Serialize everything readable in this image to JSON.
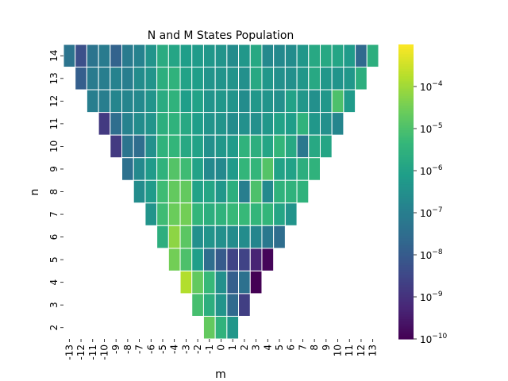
{
  "chart_data": {
    "type": "heatmap",
    "title": "N and M States Population",
    "xlabel": "m",
    "ylabel": "n",
    "x_categories": [
      -13,
      -12,
      -11,
      -10,
      -9,
      -8,
      -7,
      -6,
      -5,
      -4,
      -3,
      -2,
      -1,
      0,
      1,
      2,
      3,
      4,
      5,
      6,
      7,
      8,
      9,
      10,
      11,
      12,
      13
    ],
    "y_categories": [
      14,
      13,
      12,
      11,
      10,
      9,
      8,
      7,
      6,
      5,
      4,
      3,
      2
    ],
    "colormap": "viridis",
    "color_scale": "log",
    "color_range": [
      1e-10,
      0.001
    ],
    "colorbar_ticks": [
      {
        "value": -10,
        "mantissa": "10",
        "exponent": "−10"
      },
      {
        "value": -9,
        "mantissa": "10",
        "exponent": "−9"
      },
      {
        "value": -8,
        "mantissa": "10",
        "exponent": "−8"
      },
      {
        "value": -7,
        "mantissa": "10",
        "exponent": "−7"
      },
      {
        "value": -6,
        "mantissa": "10",
        "exponent": "−6"
      },
      {
        "value": -5,
        "mantissa": "10",
        "exponent": "−5"
      },
      {
        "value": -4,
        "mantissa": "10",
        "exponent": "−4"
      }
    ],
    "log10_values_by_row": {
      "14": [
        -7.3,
        -8.3,
        -7.3,
        -7.1,
        -7.8,
        -7.1,
        -6.9,
        -6.4,
        -5.7,
        -5.9,
        -6.1,
        -6.2,
        -6.3,
        -6.4,
        -6.6,
        -6.3,
        -5.8,
        -6.7,
        -6.7,
        -6.6,
        -6.3,
        -5.8,
        -5.8,
        -5.9,
        -6.2,
        -7.6,
        -5.6
      ],
      "13": [
        null,
        -7.9,
        -7.1,
        -7.0,
        -6.9,
        -7.0,
        -6.6,
        -6.4,
        -5.6,
        -5.5,
        -6.0,
        -6.1,
        -6.4,
        -6.4,
        -6.4,
        -6.5,
        -5.8,
        -6.3,
        -6.5,
        -6.5,
        -6.3,
        -5.8,
        -6.3,
        -6.4,
        -6.3,
        -5.6,
        null
      ],
      "12": [
        null,
        null,
        -7.0,
        -7.0,
        -6.8,
        -6.8,
        -6.7,
        -6.4,
        -5.7,
        -5.5,
        -6.1,
        -6.0,
        -6.4,
        -6.3,
        -6.4,
        -6.6,
        -6.3,
        -6.4,
        -6.5,
        -6.0,
        -6.3,
        -6.5,
        -6.3,
        -5.0,
        -6.2,
        null,
        null
      ],
      "11": [
        null,
        null,
        null,
        -8.8,
        -7.5,
        -6.9,
        -6.6,
        -6.4,
        -5.6,
        -5.5,
        -5.8,
        -6.1,
        -6.4,
        -6.4,
        -6.6,
        -6.5,
        -6.5,
        -6.3,
        -6.0,
        -6.1,
        -5.5,
        -6.3,
        -6.5,
        -6.8,
        null,
        null,
        null
      ],
      "10": [
        null,
        null,
        null,
        null,
        -8.8,
        -7.3,
        -7.5,
        -6.5,
        -5.5,
        -5.4,
        -5.8,
        -6.0,
        -6.5,
        -6.3,
        -6.2,
        -5.5,
        -5.6,
        -5.9,
        -5.4,
        -5.8,
        -7.2,
        -5.8,
        -5.9,
        null,
        null,
        null,
        null
      ],
      "9": [
        null,
        null,
        null,
        null,
        null,
        -7.4,
        -6.7,
        -6.2,
        -5.5,
        -4.9,
        -5.2,
        -6.0,
        -6.7,
        -6.7,
        -6.2,
        -5.4,
        -5.4,
        -4.9,
        -6.0,
        -6.0,
        -5.6,
        -5.5,
        null,
        null,
        null,
        null,
        null
      ],
      "8": [
        null,
        null,
        null,
        null,
        null,
        null,
        -6.6,
        -6.2,
        -5.2,
        -4.7,
        -4.7,
        -6.0,
        -5.9,
        -6.3,
        -5.6,
        -7.0,
        -5.0,
        -6.7,
        -5.5,
        -5.5,
        -5.5,
        null,
        null,
        null,
        null,
        null,
        null
      ],
      "7": [
        null,
        null,
        null,
        null,
        null,
        null,
        null,
        -6.4,
        -5.2,
        -4.6,
        -4.5,
        -5.4,
        -5.6,
        -5.5,
        -5.3,
        -5.3,
        -5.4,
        -5.4,
        -5.9,
        -6.4,
        null,
        null,
        null,
        null,
        null,
        null,
        null
      ],
      "6": [
        null,
        null,
        null,
        null,
        null,
        null,
        null,
        null,
        -5.6,
        -4.2,
        -4.8,
        -6.5,
        -6.4,
        -6.5,
        -6.6,
        -6.6,
        -6.8,
        -7.2,
        -7.5,
        null,
        null,
        null,
        null,
        null,
        null,
        null,
        null
      ],
      "5": [
        null,
        null,
        null,
        null,
        null,
        null,
        null,
        null,
        null,
        -4.5,
        -5.0,
        -6.1,
        -7.5,
        -8.0,
        -8.6,
        -8.6,
        -9.3,
        -9.9,
        null,
        null,
        null,
        null,
        null,
        null,
        null,
        null,
        null
      ],
      "4": [
        null,
        null,
        null,
        null,
        null,
        null,
        null,
        null,
        null,
        null,
        -3.8,
        -4.7,
        -5.3,
        -6.5,
        -7.9,
        -7.4,
        -10.0,
        null,
        null,
        null,
        null,
        null,
        null,
        null,
        null,
        null,
        null
      ],
      "3": [
        null,
        null,
        null,
        null,
        null,
        null,
        null,
        null,
        null,
        null,
        null,
        -5.1,
        -5.6,
        -6.4,
        -7.6,
        -8.7,
        null,
        null,
        null,
        null,
        null,
        null,
        null,
        null,
        null,
        null,
        null
      ],
      "2": [
        null,
        null,
        null,
        null,
        null,
        null,
        null,
        null,
        null,
        null,
        null,
        null,
        -4.7,
        -5.5,
        -6.3,
        null,
        null,
        null,
        null,
        null,
        null,
        null,
        null,
        null,
        null,
        null,
        null
      ]
    },
    "grid": false,
    "legend": "colorbar-right"
  }
}
